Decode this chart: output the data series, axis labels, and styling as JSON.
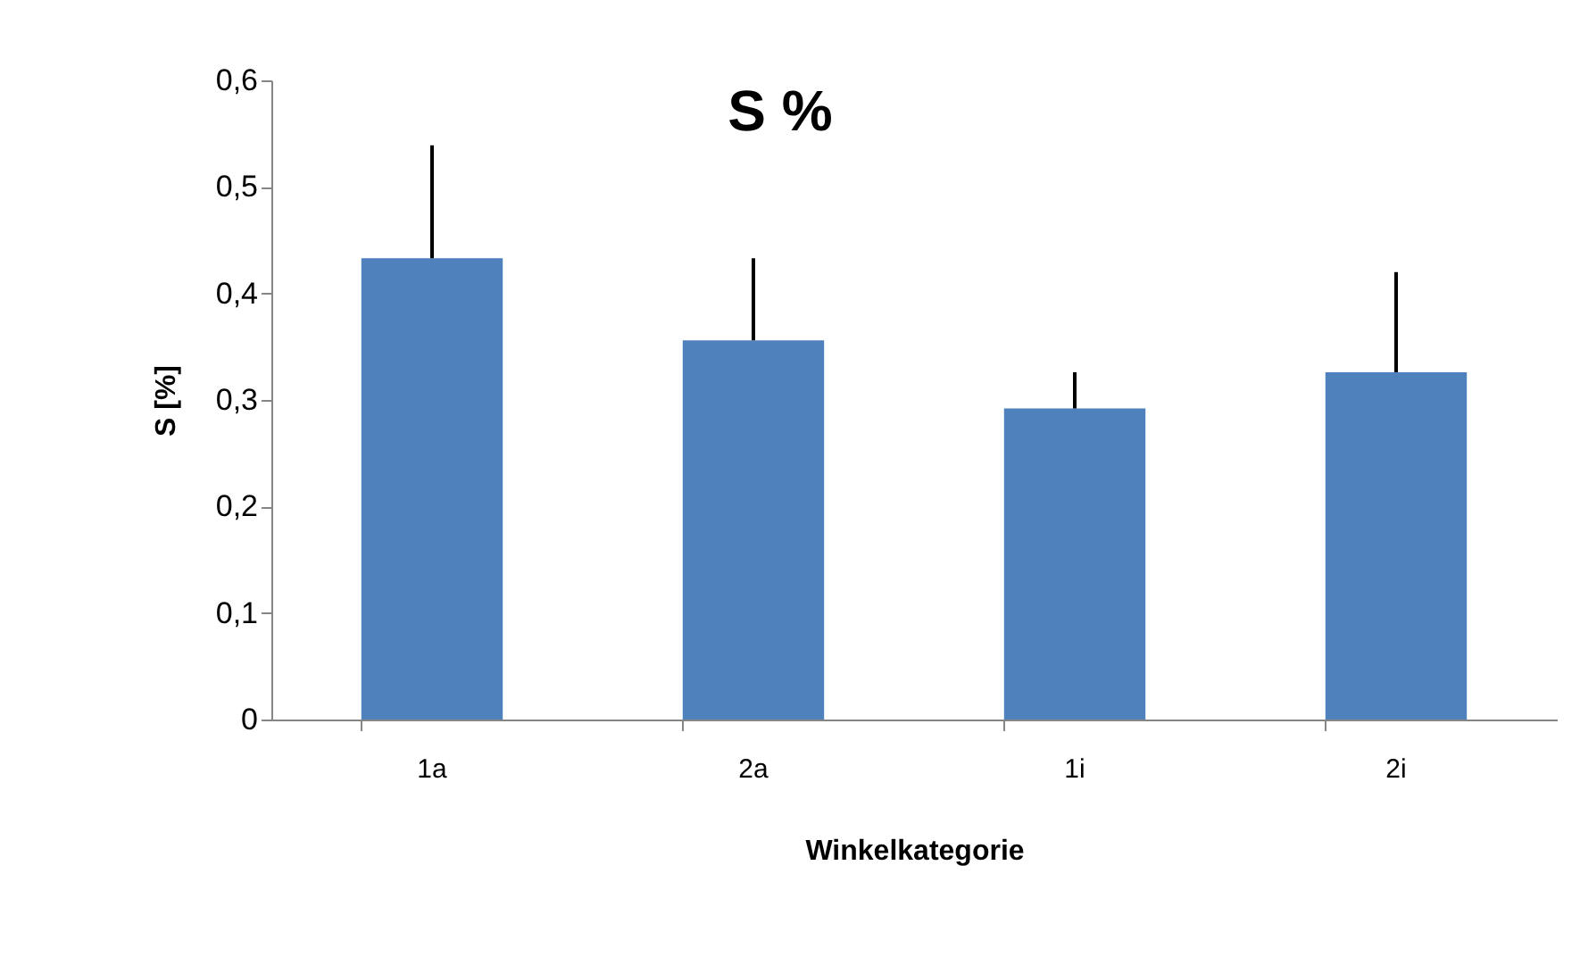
{
  "chart_data": {
    "type": "bar",
    "title": "S %",
    "xlabel": "Winkelkategorie",
    "ylabel": "S [%]",
    "categories": [
      "1a",
      "2a",
      "1i",
      "2i"
    ],
    "values": [
      0.433,
      0.356,
      0.292,
      0.326
    ],
    "errors": [
      [
        0.433,
        0.539
      ],
      [
        0.356,
        0.433
      ],
      [
        0.292,
        0.326
      ],
      [
        0.326,
        0.42
      ]
    ],
    "color": "#4f81bd",
    "ylim": [
      0,
      0.6
    ],
    "yticks": [
      0,
      {
        "value": 0.1,
        "label": "0,1"
      },
      {
        "value": 0.2,
        "label": "0,2"
      },
      {
        "value": 0.3,
        "label": "0,3"
      },
      {
        "value": 0.4,
        "label": "0,4"
      },
      {
        "value": 0.5,
        "label": "0,5"
      },
      {
        "value": 0.6,
        "label": "0,6"
      }
    ],
    "grid": false
  }
}
